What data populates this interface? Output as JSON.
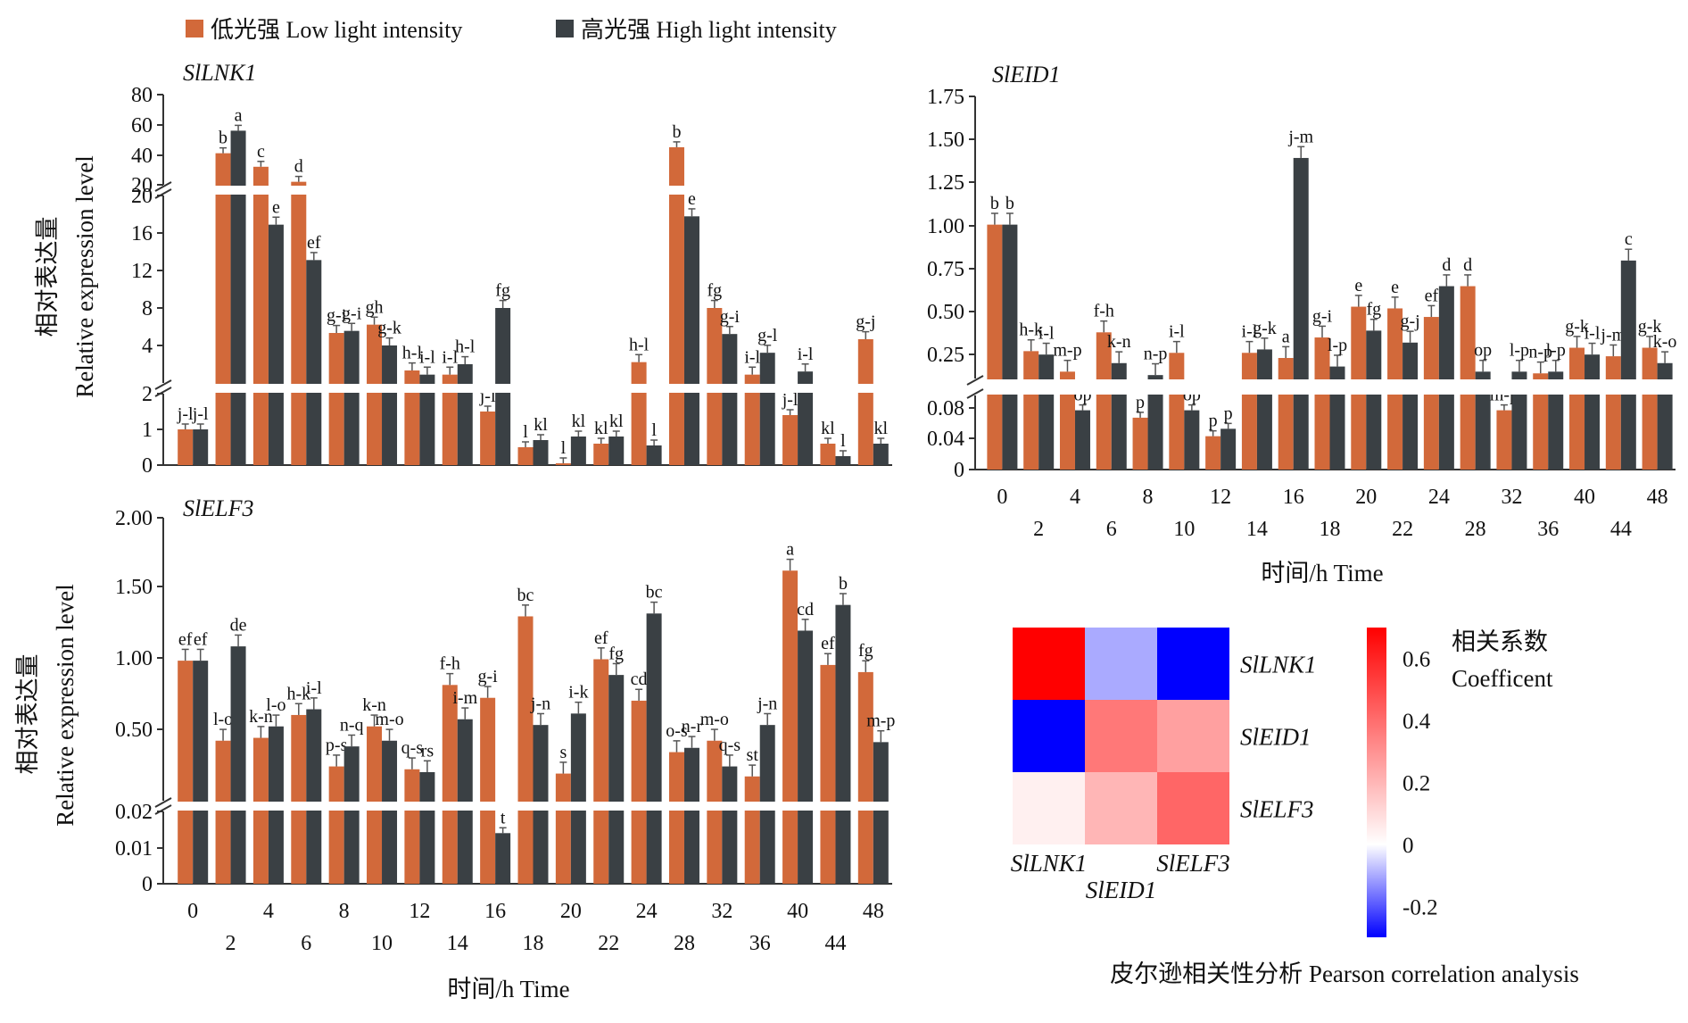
{
  "legend": {
    "low_label": "低光强 Low light intensity",
    "high_label": "高光强 High light intensity"
  },
  "colors": {
    "low": "#D2693A",
    "high": "#3A4044"
  },
  "chart_data": [
    {
      "type": "bar",
      "title": "SlLNK1",
      "ylabel_cn": "相对表达量",
      "ylabel_en": "Relative expression level",
      "ylabel": "相对表达量 Relative expression level",
      "xlabel": "",
      "categories": [
        "0",
        "2",
        "4",
        "6",
        "8",
        "10",
        "12",
        "14",
        "16",
        "18",
        "20",
        "22",
        "24",
        "28",
        "32",
        "36",
        "40",
        "44",
        "48"
      ],
      "axis_segments": [
        {
          "range": [
            0,
            2
          ],
          "ticks": [
            "0",
            "1",
            "2"
          ]
        },
        {
          "range": [
            2,
            20
          ],
          "ticks": [
            "4",
            "8",
            "12",
            "16",
            "20"
          ]
        },
        {
          "range": [
            20,
            80
          ],
          "ticks": [
            "20",
            "40",
            "60",
            "80"
          ]
        }
      ],
      "series": [
        {
          "name": "低光强 Low light intensity",
          "values": [
            1.0,
            41.0,
            32.0,
            22.0,
            6.8,
            7.6,
            3.2,
            2.8,
            1.5,
            0.5,
            0.05,
            0.6,
            4.0,
            45.0,
            9.2,
            2.8,
            1.4,
            0.6,
            6.2
          ],
          "letters": [
            "j-l",
            "b",
            "c",
            "d",
            "g-i",
            "gh",
            "h-l",
            "i-l",
            "j-l",
            "l",
            "l",
            "kl",
            "h-l",
            "b",
            "fg",
            "i-l",
            "j-l",
            "kl",
            "g-j"
          ]
        },
        {
          "name": "高光强 High light intensity",
          "values": [
            1.0,
            56.0,
            17.2,
            13.8,
            7.0,
            5.6,
            2.8,
            3.8,
            9.2,
            0.7,
            0.8,
            0.8,
            0.55,
            18.0,
            6.7,
            4.9,
            3.1,
            0.25,
            0.6
          ],
          "letters": [
            "j-l",
            "a",
            "e",
            "ef",
            "g-i",
            "g-k",
            "i-l",
            "h-l",
            "fg",
            "kl",
            "kl",
            "kl",
            "l",
            "e",
            "g-i",
            "g-l",
            "i-l",
            "l",
            "kl"
          ]
        }
      ]
    },
    {
      "type": "bar",
      "title": "SlEID1",
      "xlabel": "时间/h Time",
      "ylabel": "",
      "categories": [
        "0",
        "2",
        "4",
        "6",
        "8",
        "10",
        "12",
        "14",
        "16",
        "18",
        "20",
        "22",
        "24",
        "28",
        "32",
        "36",
        "40",
        "44",
        "48"
      ],
      "axis_segments": [
        {
          "range": [
            0,
            0.1
          ],
          "ticks": [
            "0",
            "0.04",
            "0.08"
          ]
        },
        {
          "range": [
            0.1,
            1.75
          ],
          "ticks": [
            "0.25",
            "0.50",
            "0.75",
            "1.00",
            "1.25",
            "1.50",
            "1.75"
          ]
        }
      ],
      "series": [
        {
          "name": "低光强 Low light intensity",
          "values": [
            1.0,
            0.26,
            0.14,
            0.37,
            0.07,
            0.25,
            0.045,
            0.25,
            0.22,
            0.34,
            0.52,
            0.51,
            0.46,
            0.64,
            0.08,
            0.13,
            0.28,
            0.23,
            0.28
          ],
          "letters": [
            "b",
            "h-k",
            "m-p",
            "f-h",
            "p",
            "i-l",
            "p",
            "i-l",
            "a",
            "g-i",
            "e",
            "e",
            "ef",
            "d",
            "m-p",
            "n-p",
            "g-k",
            "j-m",
            "g-k"
          ]
        },
        {
          "name": "高光强 High light intensity",
          "values": [
            1.0,
            0.24,
            0.08,
            0.19,
            0.12,
            0.08,
            0.055,
            0.27,
            1.39,
            0.17,
            0.38,
            0.31,
            0.64,
            0.14,
            0.14,
            0.14,
            0.24,
            0.79,
            0.19
          ],
          "letters": [
            "b",
            "i-l",
            "op",
            "k-n",
            "n-p",
            "op",
            "p",
            "g-k",
            "j-m",
            "l-p",
            "fg",
            "g-j",
            "d",
            "op",
            "l-p",
            "l-p",
            "i-l",
            "c",
            "k-o"
          ]
        }
      ]
    },
    {
      "type": "bar",
      "title": "SlELF3",
      "ylabel_cn": "相对表达量",
      "ylabel_en": "Relative expression level",
      "ylabel": "相对表达量 Relative expression level",
      "xlabel": "时间/h Time",
      "categories": [
        "0",
        "2",
        "4",
        "6",
        "8",
        "10",
        "12",
        "14",
        "16",
        "18",
        "20",
        "22",
        "24",
        "28",
        "32",
        "36",
        "40",
        "44",
        "48"
      ],
      "axis_segments": [
        {
          "range": [
            0,
            0.02
          ],
          "ticks": [
            "0",
            "0.01",
            "0.02"
          ]
        },
        {
          "range": [
            0.02,
            2.0
          ],
          "ticks": [
            "0.50",
            "1.00",
            "1.50",
            "2.00"
          ]
        }
      ],
      "series": [
        {
          "name": "低光强 Low light intensity",
          "values": [
            1.0,
            0.44,
            0.46,
            0.62,
            0.26,
            0.54,
            0.24,
            0.83,
            0.74,
            1.31,
            0.21,
            1.01,
            0.72,
            0.36,
            0.44,
            0.19,
            1.63,
            0.97,
            0.92
          ],
          "letters": [
            "ef",
            "l-o",
            "k-n",
            "h-k",
            "p-s",
            "k-n",
            "q-s",
            "f-h",
            "g-i",
            "bc",
            "s",
            "ef",
            "cd",
            "o-s",
            "m-o",
            "st",
            "a",
            "ef",
            "fg"
          ]
        },
        {
          "name": "高光强 High light intensity",
          "values": [
            1.0,
            1.1,
            0.54,
            0.66,
            0.4,
            0.44,
            0.22,
            0.59,
            0.014,
            0.55,
            0.63,
            0.9,
            1.33,
            0.39,
            0.26,
            0.55,
            1.21,
            1.39,
            0.43
          ],
          "letters": [
            "ef",
            "de",
            "l-o",
            "i-l",
            "n-q",
            "m-o",
            "rs",
            "i-m",
            "t",
            "j-n",
            "i-k",
            "fg",
            "bc",
            "n-r",
            "q-s",
            "j-n",
            "cd",
            "b",
            "m-p"
          ]
        }
      ]
    },
    {
      "type": "heatmap",
      "title": "皮尔逊相关性分析  Pearson correlation analysis",
      "rows": [
        "SlLNK1",
        "SlEID1",
        "SlELF3"
      ],
      "cols": [
        "SlLNK1",
        "SlEID1",
        "SlELF3"
      ],
      "values": [
        [
          0.7,
          -0.1,
          -0.3
        ],
        [
          -0.3,
          0.37,
          0.26
        ],
        [
          0.04,
          0.2,
          0.42
        ]
      ],
      "colorbar": {
        "label_cn": "相关系数",
        "label_en": "Coefficent",
        "range": [
          -0.3,
          0.7
        ],
        "ticks": [
          "0.6",
          "0.4",
          "0.2",
          "0",
          "-0.2"
        ]
      }
    }
  ]
}
